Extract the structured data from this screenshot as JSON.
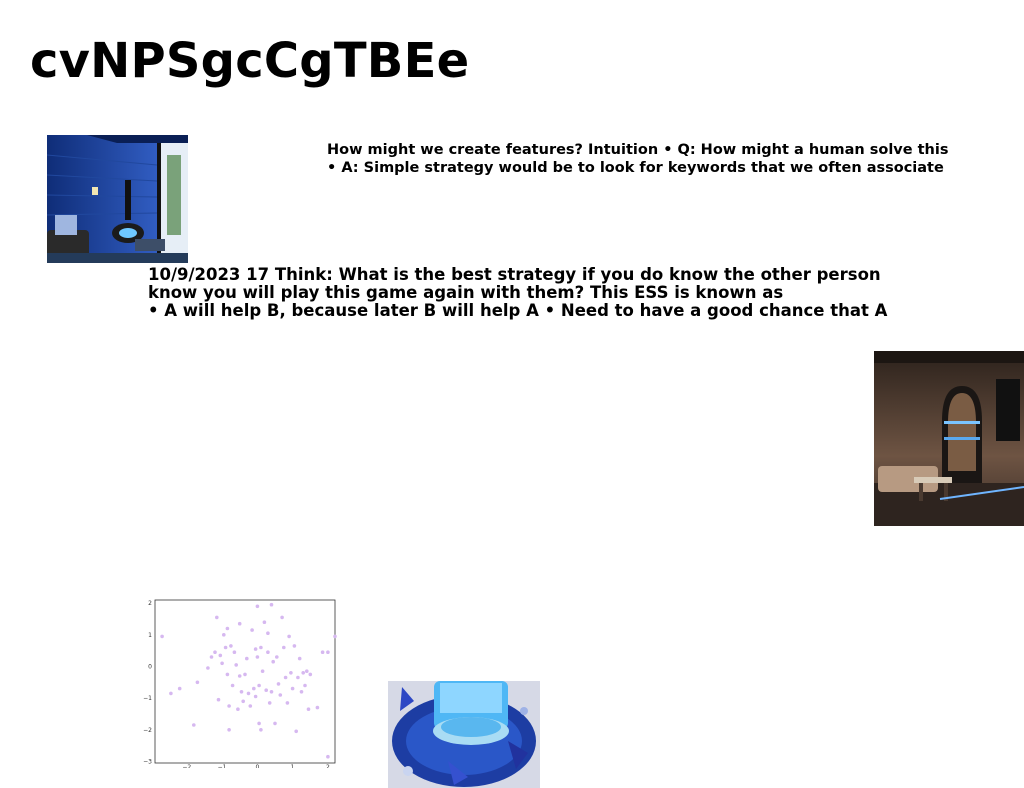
{
  "document": {
    "title": "cvNPSgcCgTBEe",
    "paragraph_1": [
      "How might we create features? Intuition • Q: How might a human solve this",
      "• A: Simple strategy would be to look for keywords that we often associate"
    ],
    "paragraph_2": [
      "10/9/2023 17 Think: What is the best strategy if you do know the other person",
      "know you will play this game again with them? This ESS is known as",
      "• A will help B, because later B will help A • Need to have a good chance that A"
    ]
  },
  "figures": {
    "scatter": {
      "x_ticks": [
        "−2",
        "−1",
        "0",
        "1",
        "2"
      ],
      "y_ticks": [
        "2",
        "1",
        "0",
        "−1",
        "−2",
        "−3"
      ],
      "point_color": "#d6b8f0",
      "points": [
        [
          -2.7,
          0.95
        ],
        [
          -2.45,
          -0.85
        ],
        [
          -2.2,
          -0.7
        ],
        [
          -1.8,
          -1.85
        ],
        [
          -1.7,
          -0.5
        ],
        [
          -1.4,
          -0.05
        ],
        [
          -1.3,
          0.3
        ],
        [
          -1.2,
          0.45
        ],
        [
          -1.15,
          1.55
        ],
        [
          -1.1,
          -1.05
        ],
        [
          -1.05,
          0.35
        ],
        [
          -1.0,
          0.1
        ],
        [
          -0.95,
          1.0
        ],
        [
          -0.9,
          0.6
        ],
        [
          -0.85,
          1.2
        ],
        [
          -0.85,
          -0.25
        ],
        [
          -0.8,
          -1.25
        ],
        [
          -0.8,
          -2.0
        ],
        [
          -0.75,
          0.65
        ],
        [
          -0.7,
          -0.6
        ],
        [
          -0.65,
          0.45
        ],
        [
          -0.6,
          0.05
        ],
        [
          -0.55,
          -1.35
        ],
        [
          -0.5,
          -0.3
        ],
        [
          -0.5,
          1.35
        ],
        [
          -0.45,
          -0.8
        ],
        [
          -0.4,
          -1.1
        ],
        [
          -0.35,
          -0.25
        ],
        [
          -0.3,
          0.25
        ],
        [
          -0.25,
          -0.85
        ],
        [
          -0.2,
          -1.25
        ],
        [
          -0.15,
          1.15
        ],
        [
          -0.1,
          -0.7
        ],
        [
          -0.05,
          0.55
        ],
        [
          -0.05,
          -0.95
        ],
        [
          0.0,
          0.3
        ],
        [
          0.0,
          1.9
        ],
        [
          0.05,
          -0.6
        ],
        [
          0.05,
          -1.8
        ],
        [
          0.1,
          0.6
        ],
        [
          0.1,
          -2.0
        ],
        [
          0.15,
          -0.15
        ],
        [
          0.2,
          1.4
        ],
        [
          0.25,
          -0.75
        ],
        [
          0.3,
          0.45
        ],
        [
          0.3,
          1.05
        ],
        [
          0.35,
          -1.15
        ],
        [
          0.4,
          -0.8
        ],
        [
          0.4,
          1.95
        ],
        [
          0.45,
          0.15
        ],
        [
          0.5,
          -1.8
        ],
        [
          0.55,
          0.3
        ],
        [
          0.6,
          -0.55
        ],
        [
          0.65,
          -0.9
        ],
        [
          0.7,
          1.55
        ],
        [
          0.75,
          0.6
        ],
        [
          0.8,
          -0.35
        ],
        [
          0.85,
          -1.15
        ],
        [
          0.9,
          0.95
        ],
        [
          0.95,
          -0.2
        ],
        [
          1.0,
          -0.7
        ],
        [
          1.05,
          0.65
        ],
        [
          1.1,
          -2.05
        ],
        [
          1.15,
          -0.35
        ],
        [
          1.2,
          0.25
        ],
        [
          1.25,
          -0.8
        ],
        [
          1.3,
          -0.2
        ],
        [
          1.35,
          -0.6
        ],
        [
          1.4,
          -0.15
        ],
        [
          1.45,
          -1.35
        ],
        [
          1.5,
          -0.25
        ],
        [
          1.7,
          -1.3
        ],
        [
          1.85,
          0.45
        ],
        [
          2.0,
          0.45
        ],
        [
          2.0,
          -2.85
        ],
        [
          2.2,
          0.95
        ]
      ]
    }
  }
}
